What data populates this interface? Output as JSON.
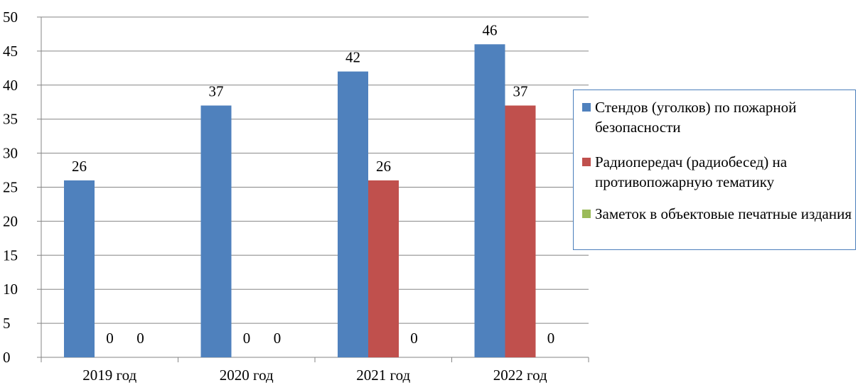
{
  "chart_data": {
    "type": "bar",
    "categories": [
      "2019 год",
      "2020 год",
      "2021 год",
      "2022 год"
    ],
    "series": [
      {
        "name": "Стендов (уголков) по пожарной безопасности",
        "values": [
          26,
          37,
          42,
          46
        ],
        "labels": [
          "26",
          "37",
          "42",
          "46"
        ],
        "color": "#4f81bd"
      },
      {
        "name": "Радиопередач (радиобесед) на противопожарную тематику",
        "values": [
          0,
          0,
          26,
          37
        ],
        "labels": [
          "0",
          "0",
          "26",
          "37"
        ],
        "color": "#c0504d"
      },
      {
        "name": "Заметок в объектовые печатные издания",
        "values": [
          0,
          0,
          0,
          0
        ],
        "labels": [
          "0",
          "0",
          "0",
          "0"
        ],
        "color": "#9bbb59"
      }
    ],
    "ylim": [
      0,
      50
    ],
    "yticks": [
      "0",
      "5",
      "10",
      "15",
      "20",
      "25",
      "30",
      "35",
      "40",
      "45",
      "50"
    ],
    "grid": true,
    "legend_position": "right"
  }
}
